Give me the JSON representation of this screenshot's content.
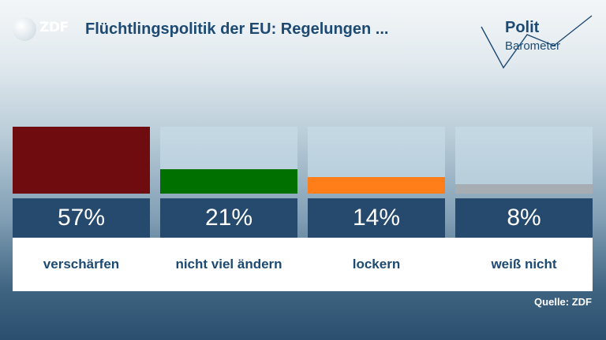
{
  "header": {
    "logo_text": "ZDF",
    "title": "Flüchtlingspolitik der EU: Regelungen ...",
    "brand_line1": "Polit",
    "brand_line2": "Barometer"
  },
  "footer": {
    "source": "Quelle: ZDF"
  },
  "colors": {
    "title": "#1d4a72",
    "value_box": "#254a6d"
  },
  "chart_data": {
    "type": "bar",
    "categories": [
      "verschärfen",
      "nicht viel ändern",
      "lockern",
      "weiß nicht"
    ],
    "values": [
      57,
      21,
      14,
      8
    ],
    "value_labels": [
      "57%",
      "21%",
      "14%",
      "8%"
    ],
    "colors": [
      "#6e0c10",
      "#007100",
      "#ff7e1a",
      "#a7aeb3"
    ],
    "ylim": [
      0,
      57
    ],
    "title": "Flüchtlingspolitik der EU: Regelungen ...",
    "xlabel": "",
    "ylabel": ""
  }
}
